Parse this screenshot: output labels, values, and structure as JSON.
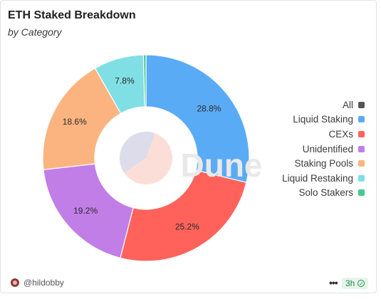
{
  "header": {
    "title": "ETH Staked Breakdown",
    "subtitle": "by Category"
  },
  "watermark": "Dune",
  "chart_data": {
    "type": "pie",
    "style": "donut",
    "categories": [
      "Liquid Staking",
      "CEXs",
      "Unidentified",
      "Staking Pools",
      "Liquid Restaking",
      "Solo Stakers"
    ],
    "values": [
      28.8,
      25.2,
      19.2,
      18.6,
      7.8,
      0.4
    ],
    "labels": [
      "28.8%",
      "25.2%",
      "19.2%",
      "18.6%",
      "7.8%",
      ""
    ],
    "colors": [
      "#5aabf6",
      "#fe625b",
      "#c17ee6",
      "#fbb47f",
      "#7fdfe4",
      "#44c990"
    ],
    "legend_position": "right",
    "inner_pie": {
      "values": [
        60,
        40
      ],
      "colors": [
        "#fcded8",
        "#dcdcea"
      ]
    }
  },
  "legend": {
    "items": [
      {
        "label": "All",
        "color": "#555555"
      },
      {
        "label": "Liquid Staking",
        "color": "#5aabf6"
      },
      {
        "label": "CEXs",
        "color": "#fe625b"
      },
      {
        "label": "Unidentified",
        "color": "#c17ee6"
      },
      {
        "label": "Staking Pools",
        "color": "#fbb47f"
      },
      {
        "label": "Liquid Restaking",
        "color": "#7fdfe4"
      },
      {
        "label": "Solo Stakers",
        "color": "#44c990"
      }
    ]
  },
  "footer": {
    "author": "@hildobby",
    "more": "•••",
    "refresh": "3h",
    "refresh_icon": "check-circle-icon"
  }
}
